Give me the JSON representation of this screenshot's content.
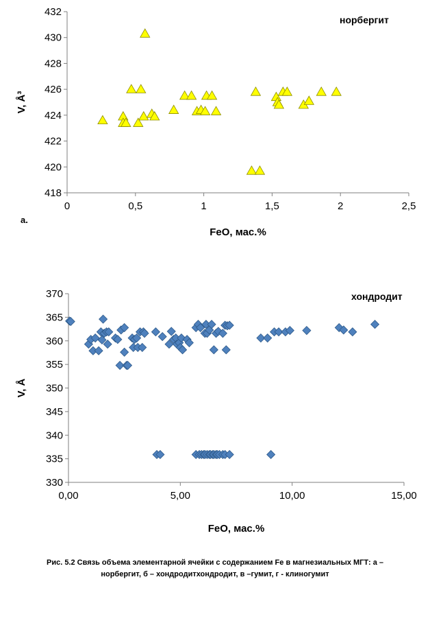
{
  "chart_data": [
    {
      "type": "scatter",
      "series_label": "норбергит",
      "xlabel": "FeO, мас.%",
      "ylabel": "V, Å³",
      "xlim": [
        0,
        2.5
      ],
      "ylim": [
        418,
        432
      ],
      "xticks": [
        0,
        0.5,
        1,
        1.5,
        2,
        2.5
      ],
      "xtick_labels": [
        "0",
        "0,5",
        "1",
        "1,5",
        "2",
        "2,5"
      ],
      "yticks": [
        418,
        420,
        422,
        424,
        426,
        428,
        430,
        432
      ],
      "ytick_labels": [
        "418",
        "420",
        "422",
        "424",
        "426",
        "428",
        "430",
        "432"
      ],
      "marker": "triangle",
      "marker_color": "#ffff00",
      "grid": false,
      "points": [
        [
          0.26,
          423.6
        ],
        [
          0.41,
          423.9
        ],
        [
          0.41,
          423.4
        ],
        [
          0.43,
          423.4
        ],
        [
          0.47,
          426.0
        ],
        [
          0.52,
          423.4
        ],
        [
          0.54,
          426.0
        ],
        [
          0.56,
          423.9
        ],
        [
          0.57,
          430.3
        ],
        [
          0.62,
          424.1
        ],
        [
          0.64,
          423.9
        ],
        [
          0.78,
          424.4
        ],
        [
          0.86,
          425.5
        ],
        [
          0.91,
          425.5
        ],
        [
          0.95,
          424.3
        ],
        [
          0.98,
          424.4
        ],
        [
          1.01,
          424.3
        ],
        [
          1.02,
          425.5
        ],
        [
          1.06,
          425.5
        ],
        [
          1.09,
          424.3
        ],
        [
          1.35,
          419.7
        ],
        [
          1.38,
          425.8
        ],
        [
          1.41,
          419.7
        ],
        [
          1.53,
          425.4
        ],
        [
          1.54,
          425.0
        ],
        [
          1.55,
          424.8
        ],
        [
          1.58,
          425.8
        ],
        [
          1.61,
          425.8
        ],
        [
          1.73,
          424.8
        ],
        [
          1.77,
          425.1
        ],
        [
          1.86,
          425.8
        ],
        [
          1.97,
          425.8
        ]
      ]
    },
    {
      "type": "scatter",
      "series_label": "хондродит",
      "xlabel": "FeO, мас.%",
      "ylabel": "V, Å",
      "xlim": [
        0,
        15
      ],
      "ylim": [
        330,
        370
      ],
      "xticks": [
        0,
        5,
        10,
        15
      ],
      "xtick_labels": [
        "0,00",
        "5,00",
        "10,00",
        "15,00"
      ],
      "yticks": [
        330,
        335,
        340,
        345,
        350,
        355,
        360,
        365,
        370
      ],
      "ytick_labels": [
        "330",
        "335",
        "340",
        "345",
        "350",
        "355",
        "360",
        "365",
        "370"
      ],
      "marker": "diamond",
      "marker_color": "#4f81bd",
      "grid": false,
      "points": [
        [
          0.05,
          364.2
        ],
        [
          0.1,
          364.1
        ],
        [
          0.9,
          359.3
        ],
        [
          1.0,
          360.3
        ],
        [
          1.1,
          357.9
        ],
        [
          1.2,
          360.6
        ],
        [
          1.35,
          357.9
        ],
        [
          1.45,
          361.9
        ],
        [
          1.5,
          360.2
        ],
        [
          1.55,
          364.6
        ],
        [
          1.6,
          361.6
        ],
        [
          1.7,
          361.9
        ],
        [
          1.75,
          359.3
        ],
        [
          1.8,
          361.9
        ],
        [
          2.1,
          360.6
        ],
        [
          2.2,
          360.3
        ],
        [
          2.3,
          354.8
        ],
        [
          2.35,
          362.3
        ],
        [
          2.5,
          362.8
        ],
        [
          2.5,
          357.6
        ],
        [
          2.6,
          354.8
        ],
        [
          2.65,
          354.8
        ],
        [
          2.85,
          360.6
        ],
        [
          2.9,
          358.6
        ],
        [
          2.95,
          360.3
        ],
        [
          3.05,
          360.6
        ],
        [
          3.1,
          358.6
        ],
        [
          3.2,
          361.9
        ],
        [
          3.3,
          358.6
        ],
        [
          3.35,
          361.9
        ],
        [
          3.4,
          361.6
        ],
        [
          3.9,
          361.9
        ],
        [
          4.2,
          360.9
        ],
        [
          4.5,
          359.3
        ],
        [
          4.6,
          362.0
        ],
        [
          4.7,
          360.3
        ],
        [
          4.8,
          360.6
        ],
        [
          4.85,
          359.3
        ],
        [
          4.95,
          359.6
        ],
        [
          5.0,
          358.6
        ],
        [
          5.05,
          360.6
        ],
        [
          5.1,
          358.1
        ],
        [
          5.3,
          360.3
        ],
        [
          5.4,
          359.6
        ],
        [
          5.7,
          362.8
        ],
        [
          5.8,
          363.5
        ],
        [
          5.9,
          362.8
        ],
        [
          6.1,
          361.6
        ],
        [
          6.15,
          363.5
        ],
        [
          6.2,
          361.6
        ],
        [
          6.3,
          362.3
        ],
        [
          6.4,
          363.5
        ],
        [
          6.5,
          358.1
        ],
        [
          6.6,
          361.6
        ],
        [
          6.7,
          362.0
        ],
        [
          6.9,
          361.6
        ],
        [
          7.0,
          363.3
        ],
        [
          7.05,
          358.1
        ],
        [
          7.1,
          363.2
        ],
        [
          7.2,
          363.3
        ],
        [
          8.6,
          360.6
        ],
        [
          8.9,
          360.6
        ],
        [
          9.2,
          361.9
        ],
        [
          9.4,
          361.9
        ],
        [
          9.7,
          361.9
        ],
        [
          9.9,
          362.2
        ],
        [
          10.65,
          362.2
        ],
        [
          12.1,
          362.8
        ],
        [
          12.3,
          362.3
        ],
        [
          12.7,
          361.9
        ],
        [
          13.7,
          363.5
        ],
        [
          3.95,
          335.9
        ],
        [
          4.1,
          335.9
        ],
        [
          5.7,
          335.9
        ],
        [
          5.85,
          335.9
        ],
        [
          5.95,
          335.9
        ],
        [
          6.05,
          335.9
        ],
        [
          6.1,
          335.9
        ],
        [
          6.2,
          335.9
        ],
        [
          6.3,
          335.9
        ],
        [
          6.35,
          335.9
        ],
        [
          6.45,
          335.9
        ],
        [
          6.5,
          335.9
        ],
        [
          6.6,
          335.9
        ],
        [
          6.65,
          335.9
        ],
        [
          6.75,
          335.9
        ],
        [
          6.9,
          335.9
        ],
        [
          7.0,
          335.9
        ],
        [
          7.2,
          335.9
        ],
        [
          9.05,
          335.9
        ]
      ]
    }
  ],
  "panel_a_label": "a.",
  "caption_line1": "Рис. 5.2 Связь объема элементарной  ячейки с содержанием Fe в магнезиальных  МГТ: а –",
  "caption_line2": "норбергит,  б – хондродитхондродит, в –гумит, г - клиногумит"
}
